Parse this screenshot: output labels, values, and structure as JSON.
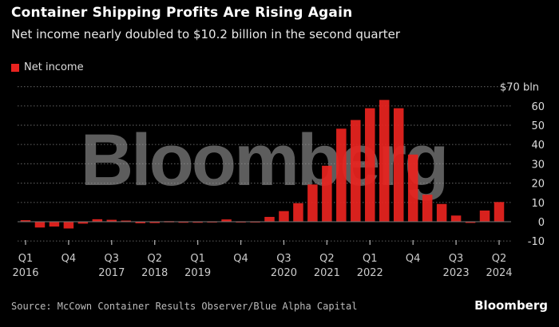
{
  "title": "Container Shipping Profits Are Rising Again",
  "subtitle": "Net income nearly doubled to $10.2 billion in the second quarter",
  "source": "Source: McCown Container Results Observer/Blue Alpha Capital",
  "logo": "Bloomberg",
  "watermark": "Bloomberg",
  "colors": {
    "bar": "#e8231f",
    "background": "#000000",
    "grid": "#555555"
  },
  "chart_data": {
    "type": "bar",
    "legend": [
      "Net income"
    ],
    "legend_placement": "top-left",
    "y_unit_label": "$70 bln",
    "ylim": [
      -10,
      70
    ],
    "yticks": [
      -10,
      0,
      10,
      20,
      30,
      40,
      50,
      60,
      70
    ],
    "ytick_labels": [
      "-10",
      "0",
      "10",
      "20",
      "30",
      "40",
      "50",
      "60",
      "$70 bln"
    ],
    "grid": true,
    "categories": [
      "Q1 2016",
      "Q2 2016",
      "Q3 2016",
      "Q4 2016",
      "Q1 2017",
      "Q2 2017",
      "Q3 2017",
      "Q4 2017",
      "Q1 2018",
      "Q2 2018",
      "Q3 2018",
      "Q4 2018",
      "Q1 2019",
      "Q2 2019",
      "Q3 2019",
      "Q4 2019",
      "Q1 2020",
      "Q2 2020",
      "Q3 2020",
      "Q4 2020",
      "Q1 2021",
      "Q2 2021",
      "Q3 2021",
      "Q4 2021",
      "Q1 2022",
      "Q2 2022",
      "Q3 2022",
      "Q4 2022",
      "Q1 2023",
      "Q2 2023",
      "Q3 2023",
      "Q4 2023",
      "Q1 2024",
      "Q2 2024"
    ],
    "series": [
      {
        "name": "Net income",
        "values": [
          0.8,
          -3,
          -2.5,
          -3.5,
          -1,
          1.3,
          1,
          0.6,
          -0.8,
          -0.7,
          0.3,
          0.1,
          0.1,
          0.2,
          1.2,
          0.2,
          0.2,
          2.5,
          5.5,
          9.6,
          19.3,
          29,
          48.2,
          52.7,
          58.8,
          63.1,
          58.8,
          34.8,
          14,
          9.2,
          3.2,
          -0.5,
          5.8,
          10.2
        ]
      }
    ],
    "xtick_labels": [
      {
        "index": 0,
        "q": "Q1",
        "y": "2016"
      },
      {
        "index": 3,
        "q": "Q4",
        "y": ""
      },
      {
        "index": 6,
        "q": "Q3",
        "y": "2017"
      },
      {
        "index": 9,
        "q": "Q2",
        "y": "2018"
      },
      {
        "index": 12,
        "q": "Q1",
        "y": "2019"
      },
      {
        "index": 15,
        "q": "Q4",
        "y": ""
      },
      {
        "index": 18,
        "q": "Q3",
        "y": "2020"
      },
      {
        "index": 21,
        "q": "Q2",
        "y": "2021"
      },
      {
        "index": 24,
        "q": "Q1",
        "y": "2022"
      },
      {
        "index": 27,
        "q": "Q4",
        "y": ""
      },
      {
        "index": 30,
        "q": "Q3",
        "y": "2023"
      },
      {
        "index": 33,
        "q": "Q2",
        "y": "2024"
      }
    ]
  }
}
